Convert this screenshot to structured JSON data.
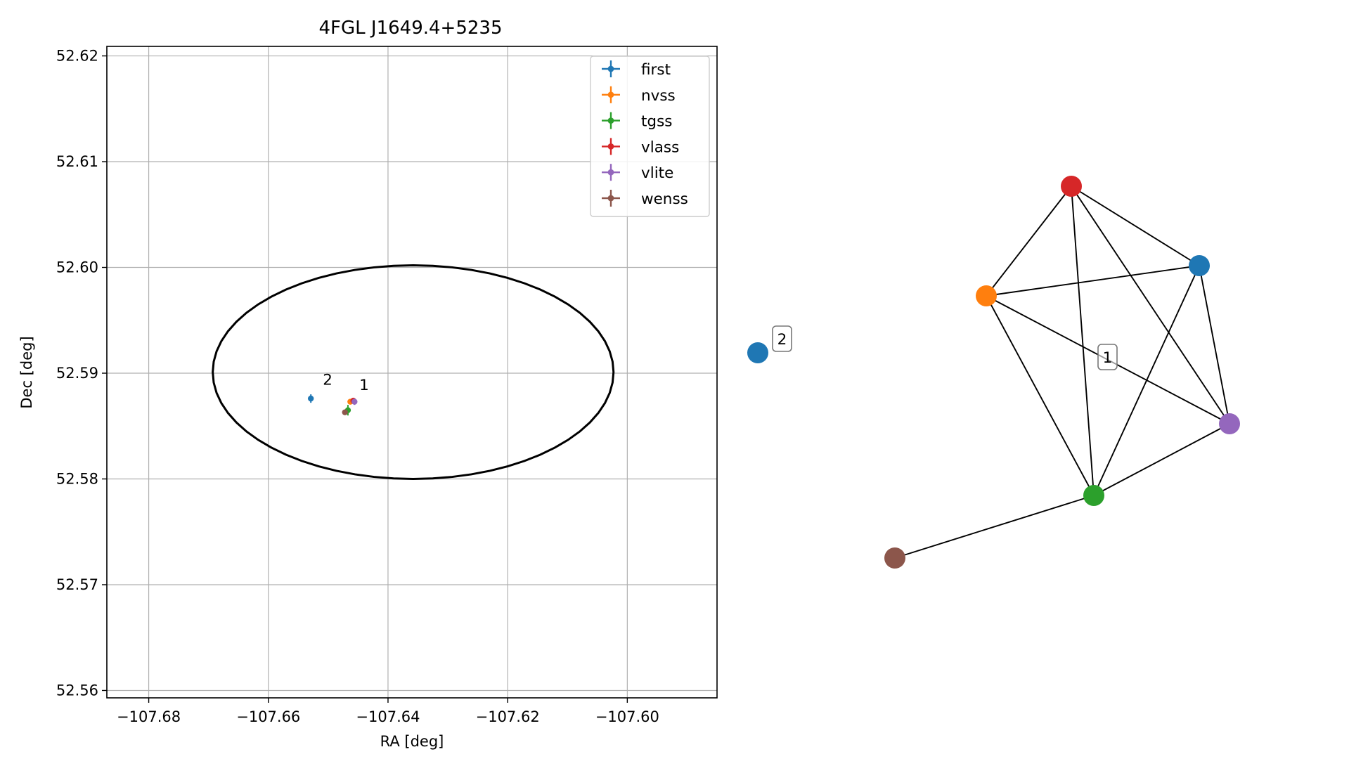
{
  "chart_data": [
    {
      "type": "scatter",
      "title": "4FGL J1649.4+5235",
      "xlabel": "RA [deg]",
      "ylabel": "Dec [deg]",
      "xlim": [
        -107.687,
        -107.585
      ],
      "ylim": [
        52.5593,
        52.6209
      ],
      "grid": true,
      "legend_placement": "top-right",
      "x_ticks": [
        -107.68,
        -107.66,
        -107.64,
        -107.62,
        -107.6
      ],
      "x_tick_labels": [
        "−107.68",
        "−107.66",
        "−107.64",
        "−107.62",
        "−107.60"
      ],
      "y_ticks": [
        52.56,
        52.57,
        52.58,
        52.59,
        52.6,
        52.61,
        52.62
      ],
      "y_tick_labels": [
        "52.56",
        "52.57",
        "52.58",
        "52.59",
        "52.60",
        "52.61",
        "52.62"
      ],
      "series": [
        {
          "name": "first",
          "color": "#1f77b4",
          "x": [
            -107.6529
          ],
          "y": [
            52.5876
          ],
          "yerr": [
            0.0004
          ],
          "xerr": [
            0.0002
          ]
        },
        {
          "name": "nvss",
          "color": "#ff7f0e",
          "x": [
            -107.6463
          ],
          "y": [
            52.5873
          ],
          "yerr": [
            0.0002
          ],
          "xerr": [
            0.0002
          ]
        },
        {
          "name": "tgss",
          "color": "#2ca02c",
          "x": [
            -107.6467
          ],
          "y": [
            52.5865
          ],
          "yerr": [
            0.0005
          ],
          "xerr": [
            0.0003
          ]
        },
        {
          "name": "vlass",
          "color": "#d62728",
          "x": [
            -107.6458
          ],
          "y": [
            52.5874
          ],
          "yerr": [
            0.0002
          ],
          "xerr": [
            0.0002
          ]
        },
        {
          "name": "vlite",
          "color": "#9467bd",
          "x": [
            -107.6456
          ],
          "y": [
            52.5873
          ],
          "yerr": [
            0.0003
          ],
          "xerr": [
            0.0004
          ]
        },
        {
          "name": "wenss",
          "color": "#8c564b",
          "x": [
            -107.6472
          ],
          "y": [
            52.5863
          ],
          "yerr": [
            0.0002
          ],
          "xerr": [
            0.0003
          ]
        }
      ],
      "ellipse": {
        "center_x": -107.6358,
        "center_y": 52.5901,
        "half_width_x": 0.0335,
        "half_height_y": 0.0101,
        "color": "#000000"
      },
      "annotations": [
        {
          "text": "2",
          "x": -107.6509,
          "y": 52.5889
        },
        {
          "text": "1",
          "x": -107.6448,
          "y": 52.5884
        }
      ]
    },
    {
      "type": "network",
      "nodes": [
        {
          "id": "red",
          "color": "#d62728"
        },
        {
          "id": "blue",
          "color": "#1f77b4"
        },
        {
          "id": "orange",
          "color": "#ff7f0e"
        },
        {
          "id": "purple",
          "color": "#9467bd"
        },
        {
          "id": "green",
          "color": "#2ca02c"
        },
        {
          "id": "brown",
          "color": "#8c564b"
        },
        {
          "id": "iso",
          "color": "#1f77b4"
        }
      ],
      "edges": [
        [
          "red",
          "orange"
        ],
        [
          "red",
          "blue"
        ],
        [
          "red",
          "green"
        ],
        [
          "red",
          "purple"
        ],
        [
          "orange",
          "blue"
        ],
        [
          "orange",
          "purple"
        ],
        [
          "orange",
          "green"
        ],
        [
          "blue",
          "purple"
        ],
        [
          "blue",
          "green"
        ],
        [
          "purple",
          "green"
        ],
        [
          "green",
          "brown"
        ]
      ],
      "labels": [
        {
          "text": "1",
          "boxed": true
        },
        {
          "text": "2",
          "boxed": true
        }
      ]
    }
  ]
}
